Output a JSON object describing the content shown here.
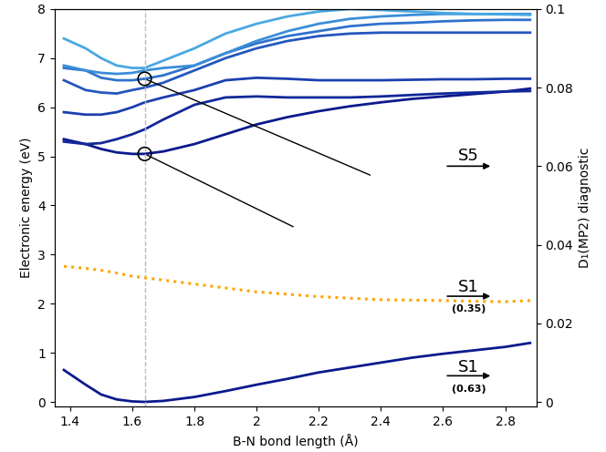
{
  "chart_data": {
    "type": "line",
    "xlabel": "B-N bond length (Å)",
    "ylabel": "Electronic energy (eV)",
    "y2label": "D₁(MP2) diagnostic",
    "x": [
      1.38,
      1.45,
      1.5,
      1.55,
      1.6,
      1.64,
      1.7,
      1.8,
      1.9,
      2.0,
      2.1,
      2.2,
      2.3,
      2.4,
      2.5,
      2.6,
      2.7,
      2.8,
      2.88
    ],
    "series": [
      {
        "color": "#0b1a8c",
        "line_style": "solid",
        "values": [
          0.65,
          0.35,
          0.15,
          0.05,
          0.01,
          0.0,
          0.02,
          0.1,
          0.22,
          0.35,
          0.47,
          0.6,
          0.7,
          0.8,
          0.9,
          0.98,
          1.05,
          1.12,
          1.2
        ]
      },
      {
        "color": "#0b1a8c",
        "line_style": "solid",
        "values": [
          5.35,
          5.25,
          5.15,
          5.08,
          5.05,
          5.05,
          5.1,
          5.25,
          5.45,
          5.65,
          5.8,
          5.92,
          6.02,
          6.1,
          6.17,
          6.22,
          6.27,
          6.32,
          6.38
        ]
      },
      {
        "color": "#12289a",
        "line_style": "solid",
        "values": [
          5.3,
          5.25,
          5.27,
          5.35,
          5.45,
          5.55,
          5.75,
          6.05,
          6.2,
          6.22,
          6.2,
          6.2,
          6.2,
          6.22,
          6.25,
          6.28,
          6.3,
          6.32,
          6.33
        ]
      },
      {
        "color": "#1c3fae",
        "line_style": "solid",
        "values": [
          5.9,
          5.85,
          5.85,
          5.9,
          6.0,
          6.1,
          6.2,
          6.35,
          6.55,
          6.6,
          6.58,
          6.55,
          6.55,
          6.55,
          6.56,
          6.57,
          6.57,
          6.58,
          6.58
        ]
      },
      {
        "color": "#2456be",
        "line_style": "solid",
        "values": [
          6.55,
          6.35,
          6.3,
          6.28,
          6.35,
          6.4,
          6.5,
          6.75,
          7.0,
          7.2,
          7.35,
          7.45,
          7.5,
          7.52,
          7.52,
          7.52,
          7.52,
          7.52,
          7.52
        ]
      },
      {
        "color": "#2f72cc",
        "line_style": "solid",
        "values": [
          6.8,
          6.75,
          6.6,
          6.55,
          6.55,
          6.58,
          6.65,
          6.85,
          7.1,
          7.3,
          7.45,
          7.55,
          7.65,
          7.7,
          7.72,
          7.75,
          7.77,
          7.78,
          7.78
        ]
      },
      {
        "color": "#3b8ed8",
        "line_style": "solid",
        "values": [
          6.85,
          6.75,
          6.7,
          6.68,
          6.7,
          6.75,
          6.8,
          6.85,
          7.1,
          7.35,
          7.55,
          7.7,
          7.8,
          7.85,
          7.88,
          7.9,
          7.9,
          7.9,
          7.9
        ]
      },
      {
        "color": "#4aa8e2",
        "line_style": "solid",
        "values": [
          7.4,
          7.2,
          7.0,
          6.85,
          6.8,
          6.8,
          6.95,
          7.2,
          7.5,
          7.7,
          7.85,
          7.95,
          8.0,
          7.98,
          7.95,
          7.92,
          7.9,
          7.89,
          7.88
        ]
      },
      {
        "color": "#ffa500",
        "line_style": "dotted",
        "axis": "y2",
        "values": [
          0.0345,
          0.034,
          0.0335,
          0.0328,
          0.032,
          0.0316,
          0.031,
          0.03,
          0.029,
          0.028,
          0.0274,
          0.0268,
          0.0264,
          0.026,
          0.0259,
          0.0258,
          0.0256,
          0.0255,
          0.0258
        ]
      }
    ],
    "reference_x": 1.64,
    "circles": {
      "x": [
        1.64,
        1.64
      ],
      "y": [
        6.58,
        5.05
      ]
    },
    "annotations": [
      {
        "text": "S5"
      },
      {
        "text": "S1"
      },
      {
        "text": "(0.35)"
      },
      {
        "text": "S1"
      },
      {
        "text": "(0.63)"
      }
    ],
    "xlim": [
      1.35,
      2.9
    ],
    "xticks": [
      1.4,
      1.6,
      1.8,
      2,
      2.2,
      2.4,
      2.6,
      2.8
    ],
    "ylim": [
      -0.1,
      8
    ],
    "yticks": [
      0,
      1,
      2,
      3,
      4,
      5,
      6,
      7,
      8
    ],
    "y2lim": [
      -0.00125,
      0.1
    ],
    "y2ticks": [
      0,
      0.02,
      0.04,
      0.06,
      0.08,
      0.1
    ],
    "grid": false
  }
}
